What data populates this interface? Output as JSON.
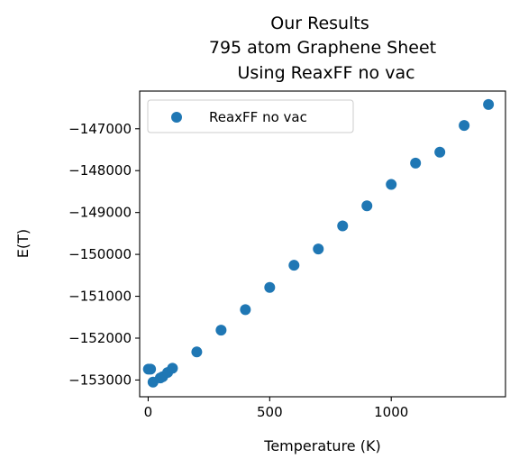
{
  "chart_data": {
    "type": "scatter",
    "title": [
      "Our Results",
      "795 atom Graphene Sheet",
      "Using ReaxFF no vac"
    ],
    "xlabel": "Temperature (K)",
    "ylabel": "E(T)",
    "xlim": [
      -35,
      1470
    ],
    "ylim": [
      -153400,
      -146100
    ],
    "xticks": [
      0,
      500,
      1000
    ],
    "xtick_labels": [
      "0",
      "500",
      "1000"
    ],
    "yticks": [
      -153000,
      -152000,
      -151000,
      -150000,
      -149000,
      -148000,
      -147000
    ],
    "ytick_labels": [
      "−153000",
      "−152000",
      "−151000",
      "−150000",
      "−149000",
      "−148000",
      "−147000"
    ],
    "grid": false,
    "legend_position": "upper left",
    "series": [
      {
        "name": "ReaxFF no vac",
        "color": "#1f77b4",
        "x": [
          1,
          10,
          20,
          50,
          60,
          80,
          100,
          200,
          300,
          400,
          500,
          600,
          700,
          800,
          900,
          1000,
          1100,
          1200,
          1300,
          1400
        ],
        "y": [
          -152740,
          -152740,
          -153050,
          -152950,
          -152920,
          -152820,
          -152720,
          -152330,
          -151810,
          -151320,
          -150790,
          -150260,
          -149870,
          -149320,
          -148840,
          -148330,
          -147820,
          -147560,
          -146920,
          -146420
        ]
      }
    ]
  }
}
